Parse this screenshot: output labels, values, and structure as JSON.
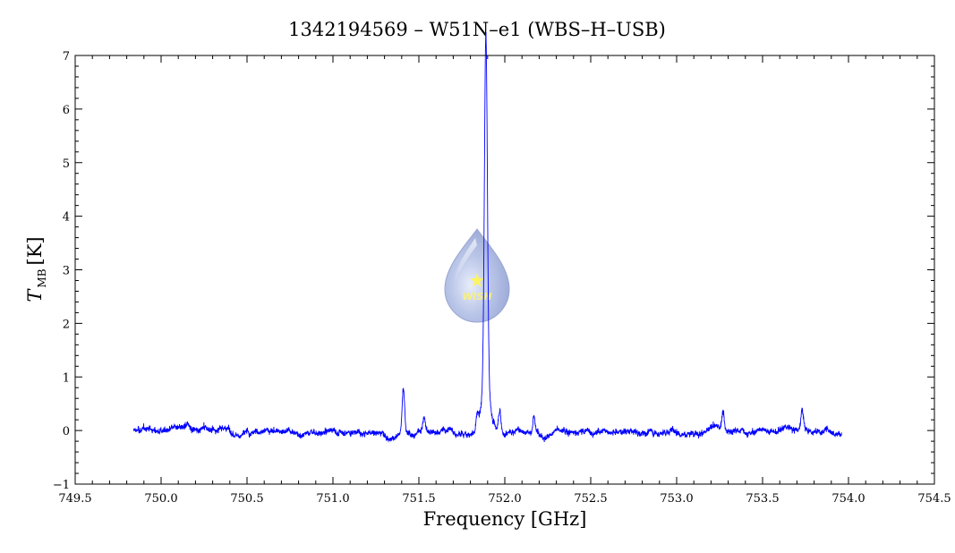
{
  "chart_data": {
    "type": "line",
    "title": "1342194569 – W51N–e1 (WBS–H–USB)",
    "xlabel": "Frequency [GHz]",
    "ylabel": {
      "symbol": "T",
      "subscript": "MB",
      "unit": "[K]"
    },
    "xlim": [
      749.5,
      754.5
    ],
    "ylim": [
      -1,
      7
    ],
    "x_ticks": [
      "749.5",
      "750.0",
      "750.5",
      "751.0",
      "751.5",
      "752.0",
      "752.5",
      "753.0",
      "753.5",
      "754.0",
      "754.5"
    ],
    "y_ticks": [
      "−1",
      "0",
      "1",
      "2",
      "3",
      "4",
      "5",
      "6",
      "7"
    ],
    "grid": false,
    "legend": "none",
    "series": [
      {
        "color": "#0000ff",
        "x_range": [
          749.84,
          753.96
        ],
        "baseline": 0.0,
        "noise_rms": 0.08,
        "features": [
          {
            "center": 751.41,
            "peak": 0.85
          },
          {
            "center": 751.53,
            "peak": 0.3
          },
          {
            "center": 751.84,
            "peak": 0.3
          },
          {
            "center": 751.89,
            "peak": 6.55
          },
          {
            "center": 751.97,
            "peak": 0.45
          },
          {
            "center": 752.17,
            "peak": 0.3
          },
          {
            "center": 753.27,
            "peak": 0.35
          },
          {
            "center": 753.73,
            "peak": 0.35
          }
        ]
      }
    ],
    "watermark": {
      "text": "WISH",
      "icon": "water-drop-logo"
    }
  }
}
